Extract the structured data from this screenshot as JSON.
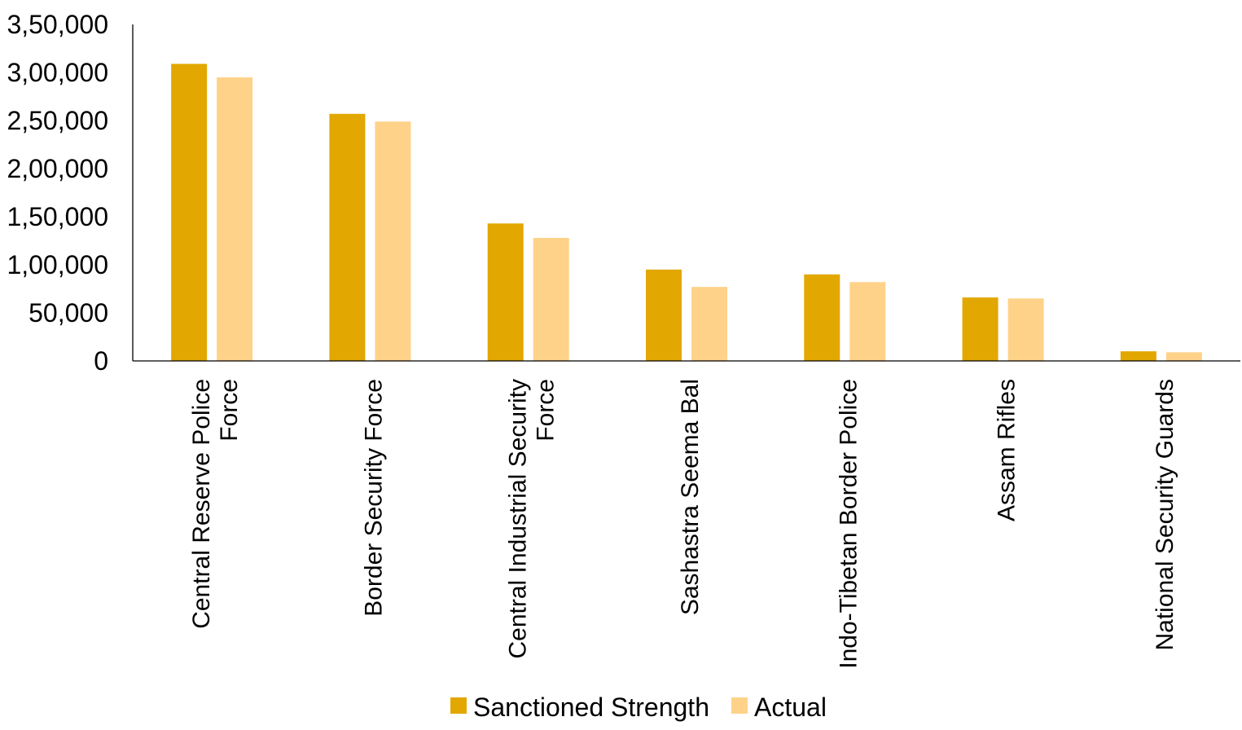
{
  "chart_data": {
    "type": "bar",
    "categories": [
      [
        "Central Reserve Police",
        "Force"
      ],
      [
        "Border Security Force"
      ],
      [
        "Central Industrial Security",
        "Force"
      ],
      [
        "Sashastra Seema Bal"
      ],
      [
        "Indo-Tibetan Border Police"
      ],
      [
        "Assam Rifles"
      ],
      [
        "National Security Guards"
      ]
    ],
    "series": [
      {
        "name": "Sanctioned Strength",
        "color": "#E2A700",
        "values": [
          309000,
          257000,
          143000,
          95000,
          90000,
          66000,
          10000
        ]
      },
      {
        "name": "Actual",
        "color": "#FFD28A",
        "values": [
          295000,
          249000,
          128000,
          77000,
          82000,
          65000,
          9000
        ]
      }
    ],
    "ylim": [
      0,
      350000
    ],
    "yticks": [
      "0",
      "50,000",
      "1,00,000",
      "1,50,000",
      "2,00,000",
      "2,50,000",
      "3,00,000",
      "3,50,000"
    ],
    "legend_position": "bottom",
    "grid": false
  }
}
